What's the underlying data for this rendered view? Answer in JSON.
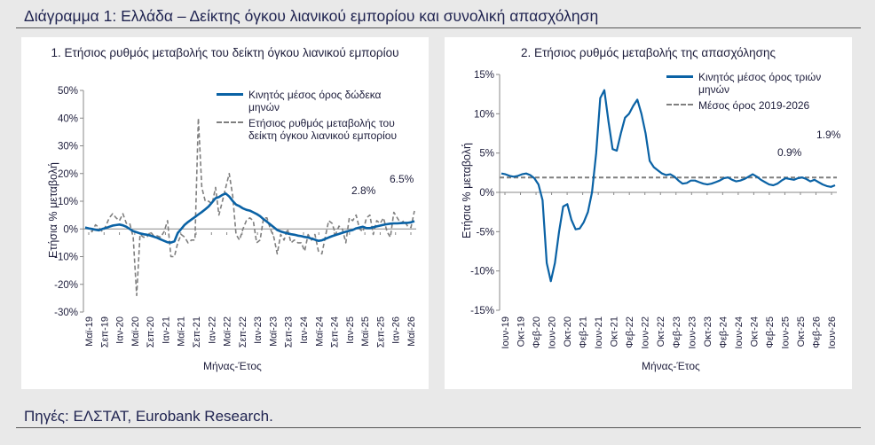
{
  "figure": {
    "title": "Διάγραμμα 1: Ελλάδα – Δείκτης όγκου λιανικού εμπορίου και συνολική απασχόληση",
    "source": "Πηγές: ΕΛΣΤΑΤ, Eurobank Research."
  },
  "chart_data": [
    {
      "type": "line",
      "title": "1. Ετήσιος ρυθμός μεταβολής του δείκτη όγκου λιανικού εμπορίου",
      "xlabel": "Μήνας-Έτος",
      "ylabel": "Ετήσια % μεταβολή",
      "ylim": [
        -30,
        50
      ],
      "yticks": [
        "-30%",
        "-20%",
        "-10%",
        "0%",
        "10%",
        "20%",
        "30%",
        "40%",
        "50%"
      ],
      "xticks": [
        "Μαϊ-19",
        "Σεπ-19",
        "Ιαν-20",
        "Μαϊ-20",
        "Σεπ-20",
        "Ιαν-21",
        "Μαϊ-21",
        "Σεπ-21",
        "Ιαν-22",
        "Μαϊ-22",
        "Σεπ-22",
        "Ιαν-23",
        "Μαϊ-23",
        "Σεπ-23",
        "Ιαν-24",
        "Μαϊ-24",
        "Σεπ-24",
        "Ιαν-25",
        "Μαϊ-25",
        "Σεπ-25",
        "Ιαν-26",
        "Μαϊ-26"
      ],
      "grid": false,
      "legend_position": "top-right",
      "series": [
        {
          "name": "Κινητός μέσος όρος δώδεκα μηνών",
          "color": "#0a62a5",
          "style": "solid",
          "values": [
            0.5,
            0.2,
            0,
            -0.3,
            -0.5,
            0,
            0.3,
            0.8,
            1.2,
            1.4,
            1.6,
            1.3,
            0.8,
            0,
            -0.8,
            -1.2,
            -1.6,
            -1.9,
            -2.1,
            -2.4,
            -2.8,
            -3.2,
            -3.8,
            -4.3,
            -4.8,
            -4.9,
            -4.5,
            -1.5,
            0,
            1.5,
            2.5,
            3.4,
            4.3,
            5.2,
            6.1,
            7.1,
            8.1,
            9.6,
            11.1,
            11.5,
            12.3,
            12.8,
            11.7,
            10.1,
            8.8,
            8.2,
            7.4,
            6.9,
            6.6,
            6,
            5.4,
            4.6,
            3.5,
            2.6,
            1.6,
            0.6,
            -0.4,
            -0.9,
            -1.3,
            -1.6,
            -1.9,
            -2.1,
            -2.4,
            -2.6,
            -2.9,
            -3.1,
            -3.5,
            -3.9,
            -4.3,
            -4.1,
            -3.6,
            -3.1,
            -2.6,
            -2.2,
            -1.8,
            -1.4,
            -1.0,
            -0.7,
            -0.4,
            0.2,
            0.5,
            0.8,
            0.3,
            0.3,
            0.6,
            0.9,
            1.2,
            1.5,
            1.7,
            1.9,
            2,
            2,
            2.1,
            2.2,
            2.2,
            2.4,
            2.8
          ]
        },
        {
          "name": "Ετήσιος ρυθμός μεταβολής του δείκτη όγκου λιανικού εμπορίου",
          "color": "#7f7f7f",
          "style": "dashed",
          "values": [
            0.5,
            0.3,
            -1,
            1.5,
            0.5,
            -1,
            1,
            4,
            5.5,
            4,
            3,
            5.5,
            2,
            2,
            -3,
            -24,
            -2,
            -3,
            -3,
            -1,
            -2.5,
            -2.5,
            -3,
            -1,
            3,
            -10,
            -10,
            -5,
            -2,
            -3,
            -5,
            -4,
            -4,
            40,
            15,
            10,
            10,
            9,
            15,
            5,
            10,
            15,
            20,
            12,
            -2,
            -4,
            0,
            3,
            4,
            3,
            -5,
            -4,
            4,
            4,
            0,
            -3,
            -9,
            -2,
            -4,
            0,
            -5,
            -4,
            -5,
            -5,
            -8,
            -2,
            -4,
            -2,
            -8,
            -9,
            -3,
            3,
            2,
            -2,
            1,
            0,
            -5,
            4,
            3,
            5,
            0,
            -1,
            4,
            5,
            -2,
            3,
            2,
            4,
            -1,
            -3,
            6,
            4,
            2,
            3,
            1,
            0.5,
            6.5
          ]
        }
      ],
      "annotations": [
        "2.8%",
        "6.5%"
      ]
    },
    {
      "type": "line",
      "title": "2. Ετήσιος ρυθμός μεταβολής της απασχόλησης",
      "xlabel": "Μήνας-Έτος",
      "ylabel": "Ετήσια % μεταβολή",
      "ylim": [
        -15,
        15
      ],
      "yticks": [
        "-15%",
        "-10%",
        "-5%",
        "0%",
        "5%",
        "10%",
        "15%"
      ],
      "xticks": [
        "Ιουν-19",
        "Οκτ-19",
        "Φεβ-20",
        "Ιουν-20",
        "Οκτ-20",
        "Φεβ-21",
        "Ιουν-21",
        "Οκτ-21",
        "Φεβ-22",
        "Ιουν-22",
        "Οκτ-22",
        "Φεβ-23",
        "Ιουν-23",
        "Οκτ-23",
        "Φεβ-24",
        "Ιουν-24",
        "Οκτ-24",
        "Φεβ-25",
        "Ιουν-25",
        "Οκτ-25",
        "Φεβ-26",
        "Ιουν-26"
      ],
      "grid": false,
      "legend_position": "top-right",
      "series": [
        {
          "name": "Κινητός μέσος όρος τριών μηνών",
          "color": "#0a62a5",
          "style": "solid",
          "values": [
            2.4,
            2.3,
            2.1,
            2.0,
            2.1,
            2.3,
            2.4,
            2.2,
            1.8,
            1.0,
            -1.0,
            -9.0,
            -11.3,
            -9.0,
            -5.0,
            -1.8,
            -1.5,
            -3.5,
            -4.7,
            -4.6,
            -3.8,
            -2.5,
            0,
            5,
            12,
            13,
            9,
            5.5,
            5.3,
            7.5,
            9.5,
            10,
            11,
            11.8,
            10,
            7.5,
            4,
            3.2,
            2.8,
            2.4,
            2.2,
            2.3,
            2.0,
            1.5,
            1.1,
            1.2,
            1.5,
            1.5,
            1.3,
            1.1,
            1.0,
            1.1,
            1.3,
            1.5,
            1.8,
            1.9,
            1.6,
            1.4,
            1.5,
            1.7,
            2.0,
            2.3,
            2.0,
            1.6,
            1.3,
            1.0,
            0.9,
            1.1,
            1.5,
            1.8,
            1.7,
            1.6,
            1.8,
            1.9,
            1.7,
            1.4,
            1.6,
            1.3,
            1.0,
            0.8,
            0.7,
            0.9
          ]
        },
        {
          "name": "Μέσος όρος 2019-2026",
          "color": "#7f7f7f",
          "style": "dashed",
          "values": [
            1.9,
            1.9
          ]
        }
      ],
      "annotations": [
        "0.9%",
        "1.9%"
      ]
    }
  ]
}
